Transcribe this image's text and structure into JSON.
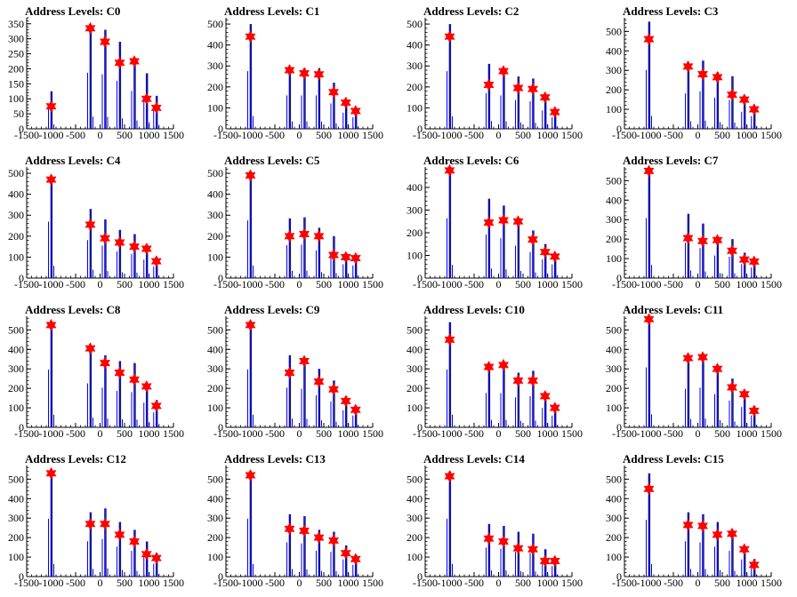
{
  "chart_data": [
    {
      "title": "Address Levels: C0",
      "type": "bar",
      "xlim": [
        -1500,
        1500
      ],
      "yticks": [
        0,
        50,
        100,
        150,
        200,
        250,
        300,
        350
      ],
      "ylim": [
        0,
        370
      ],
      "xticks": [
        -1500,
        -1000,
        -500,
        0,
        500,
        1000,
        1500
      ],
      "x": [
        -1000,
        -200,
        100,
        400,
        700,
        950,
        1150
      ],
      "peaks": [
        125,
        340,
        330,
        290,
        230,
        185,
        110
      ],
      "markers": [
        75,
        335,
        290,
        220,
        225,
        100,
        70
      ]
    },
    {
      "title": "Address Levels: C1",
      "type": "bar",
      "xlim": [
        -1500,
        1500
      ],
      "yticks": [
        0,
        100,
        200,
        300,
        400,
        500
      ],
      "ylim": [
        0,
        530
      ],
      "xticks": [
        -1500,
        -1000,
        -500,
        0,
        500,
        1000,
        1500
      ],
      "x": [
        -1000,
        -200,
        100,
        400,
        700,
        950,
        1150
      ],
      "peaks": [
        500,
        290,
        290,
        290,
        220,
        140,
        100
      ],
      "markers": [
        440,
        280,
        265,
        260,
        175,
        125,
        85
      ]
    },
    {
      "title": "Address Levels: C2",
      "type": "bar",
      "xlim": [
        -1500,
        1500
      ],
      "yticks": [
        0,
        100,
        200,
        300,
        400,
        500
      ],
      "ylim": [
        0,
        530
      ],
      "xticks": [
        -1500,
        -1000,
        -500,
        0,
        500,
        1000,
        1500
      ],
      "x": [
        -1000,
        -200,
        100,
        400,
        700,
        950,
        1150
      ],
      "peaks": [
        500,
        310,
        290,
        250,
        240,
        160,
        100
      ],
      "markers": [
        440,
        210,
        275,
        195,
        190,
        150,
        80
      ]
    },
    {
      "title": "Address Levels: C3",
      "type": "bar",
      "xlim": [
        -1500,
        1500
      ],
      "yticks": [
        0,
        100,
        200,
        300,
        400,
        500
      ],
      "ylim": [
        0,
        570
      ],
      "xticks": [
        -1500,
        -1000,
        -500,
        0,
        500,
        1000,
        1500
      ],
      "x": [
        -1000,
        -200,
        100,
        400,
        700,
        950,
        1150
      ],
      "peaks": [
        550,
        330,
        350,
        290,
        270,
        160,
        120
      ],
      "markers": [
        460,
        320,
        280,
        265,
        175,
        150,
        100
      ]
    },
    {
      "title": "Address Levels: C4",
      "type": "bar",
      "xlim": [
        -1500,
        1500
      ],
      "yticks": [
        0,
        100,
        200,
        300,
        400,
        500
      ],
      "ylim": [
        0,
        530
      ],
      "xticks": [
        -1500,
        -1000,
        -500,
        0,
        500,
        1000,
        1500
      ],
      "x": [
        -1000,
        -200,
        100,
        400,
        700,
        950,
        1150
      ],
      "peaks": [
        490,
        330,
        280,
        230,
        210,
        160,
        100
      ],
      "markers": [
        470,
        255,
        190,
        170,
        150,
        140,
        80
      ]
    },
    {
      "title": "Address Levels: C5",
      "type": "bar",
      "xlim": [
        -1500,
        1500
      ],
      "yticks": [
        0,
        100,
        200,
        300,
        400,
        500
      ],
      "ylim": [
        0,
        530
      ],
      "xticks": [
        -1500,
        -1000,
        -500,
        0,
        500,
        1000,
        1500
      ],
      "x": [
        -1000,
        -200,
        100,
        400,
        700,
        950,
        1150
      ],
      "peaks": [
        500,
        285,
        290,
        240,
        200,
        120,
        110
      ],
      "markers": [
        490,
        200,
        210,
        200,
        110,
        100,
        95
      ]
    },
    {
      "title": "Address Levels: C6",
      "type": "bar",
      "xlim": [
        -1500,
        1500
      ],
      "yticks": [
        0,
        100,
        200,
        300,
        400
      ],
      "ylim": [
        0,
        490
      ],
      "xticks": [
        -1500,
        -1000,
        -500,
        0,
        500,
        1000,
        1500
      ],
      "x": [
        -1000,
        -200,
        100,
        400,
        700,
        950,
        1150
      ],
      "peaks": [
        480,
        350,
        320,
        260,
        210,
        150,
        110
      ],
      "markers": [
        475,
        245,
        255,
        250,
        170,
        115,
        95
      ]
    },
    {
      "title": "Address Levels: C7",
      "type": "bar",
      "xlim": [
        -1500,
        1500
      ],
      "yticks": [
        0,
        100,
        200,
        300,
        400,
        500
      ],
      "ylim": [
        0,
        570
      ],
      "xticks": [
        -1500,
        -1000,
        -500,
        0,
        500,
        1000,
        1500
      ],
      "x": [
        -1000,
        -200,
        100,
        400,
        700,
        950,
        1150
      ],
      "peaks": [
        560,
        330,
        280,
        210,
        200,
        130,
        100
      ],
      "markers": [
        550,
        205,
        190,
        195,
        140,
        95,
        85
      ]
    },
    {
      "title": "Address Levels: C8",
      "type": "bar",
      "xlim": [
        -1500,
        1500
      ],
      "yticks": [
        0,
        100,
        200,
        300,
        400,
        500
      ],
      "ylim": [
        0,
        570
      ],
      "xticks": [
        -1500,
        -1000,
        -500,
        0,
        500,
        1000,
        1500
      ],
      "x": [
        -1000,
        -200,
        100,
        400,
        700,
        950,
        1150
      ],
      "peaks": [
        540,
        410,
        370,
        340,
        330,
        230,
        140
      ],
      "markers": [
        525,
        405,
        330,
        280,
        245,
        210,
        110
      ]
    },
    {
      "title": "Address Levels: C9",
      "type": "bar",
      "xlim": [
        -1500,
        1500
      ],
      "yticks": [
        0,
        100,
        200,
        300,
        400,
        500
      ],
      "ylim": [
        0,
        570
      ],
      "xticks": [
        -1500,
        -1000,
        -500,
        0,
        500,
        1000,
        1500
      ],
      "x": [
        -1000,
        -200,
        100,
        400,
        700,
        950,
        1150
      ],
      "peaks": [
        540,
        370,
        360,
        300,
        240,
        160,
        110
      ],
      "markers": [
        525,
        280,
        340,
        235,
        195,
        135,
        90
      ]
    },
    {
      "title": "Address Levels: C10",
      "type": "bar",
      "xlim": [
        -1500,
        1500
      ],
      "yticks": [
        0,
        100,
        200,
        300,
        400,
        500
      ],
      "ylim": [
        0,
        570
      ],
      "xticks": [
        -1500,
        -1000,
        -500,
        0,
        500,
        1000,
        1500
      ],
      "x": [
        -1000,
        -200,
        100,
        400,
        700,
        950,
        1150
      ],
      "peaks": [
        540,
        320,
        320,
        280,
        290,
        180,
        110
      ],
      "markers": [
        450,
        310,
        320,
        240,
        240,
        160,
        100
      ]
    },
    {
      "title": "Address Levels: C11",
      "type": "bar",
      "xlim": [
        -1500,
        1500
      ],
      "yticks": [
        0,
        100,
        200,
        300,
        400,
        500
      ],
      "ylim": [
        0,
        570
      ],
      "xticks": [
        -1500,
        -1000,
        -500,
        0,
        500,
        1000,
        1500
      ],
      "x": [
        -1000,
        -200,
        100,
        400,
        700,
        950,
        1150
      ],
      "peaks": [
        560,
        360,
        370,
        310,
        250,
        190,
        110
      ],
      "markers": [
        555,
        355,
        360,
        300,
        205,
        170,
        85
      ]
    },
    {
      "title": "Address Levels: C12",
      "type": "bar",
      "xlim": [
        -1500,
        1500
      ],
      "yticks": [
        0,
        100,
        200,
        300,
        400,
        500
      ],
      "ylim": [
        0,
        570
      ],
      "xticks": [
        -1500,
        -1000,
        -500,
        0,
        500,
        1000,
        1500
      ],
      "x": [
        -1000,
        -200,
        100,
        400,
        700,
        950,
        1150
      ],
      "peaks": [
        540,
        330,
        350,
        280,
        240,
        180,
        120
      ],
      "markers": [
        530,
        270,
        270,
        215,
        180,
        115,
        95
      ]
    },
    {
      "title": "Address Levels: C13",
      "type": "bar",
      "xlim": [
        -1500,
        1500
      ],
      "yticks": [
        0,
        100,
        200,
        300,
        400,
        500
      ],
      "ylim": [
        0,
        570
      ],
      "xticks": [
        -1500,
        -1000,
        -500,
        0,
        500,
        1000,
        1500
      ],
      "x": [
        -1000,
        -200,
        100,
        400,
        700,
        950,
        1150
      ],
      "peaks": [
        540,
        320,
        310,
        240,
        230,
        160,
        110
      ],
      "markers": [
        520,
        245,
        235,
        200,
        185,
        120,
        90
      ]
    },
    {
      "title": "Address Levels: C14",
      "type": "bar",
      "xlim": [
        -1500,
        1500
      ],
      "yticks": [
        0,
        100,
        200,
        300,
        400,
        500
      ],
      "ylim": [
        0,
        570
      ],
      "xticks": [
        -1500,
        -1000,
        -500,
        0,
        500,
        1000,
        1500
      ],
      "x": [
        -1000,
        -200,
        100,
        400,
        700,
        950,
        1150
      ],
      "peaks": [
        540,
        270,
        260,
        230,
        220,
        140,
        100
      ],
      "markers": [
        515,
        195,
        180,
        145,
        140,
        80,
        80
      ]
    },
    {
      "title": "Address Levels: C15",
      "type": "bar",
      "xlim": [
        -1500,
        1500
      ],
      "yticks": [
        0,
        100,
        200,
        300,
        400,
        500
      ],
      "ylim": [
        0,
        570
      ],
      "xticks": [
        -1500,
        -1000,
        -500,
        0,
        500,
        1000,
        1500
      ],
      "x": [
        -1000,
        -200,
        100,
        400,
        700,
        950,
        1150
      ],
      "peaks": [
        530,
        330,
        320,
        280,
        240,
        160,
        90
      ],
      "markers": [
        450,
        265,
        260,
        215,
        220,
        140,
        60
      ]
    }
  ],
  "colors": {
    "line": "#0000ff",
    "tip": "#000000",
    "marker": "#ff0000",
    "axis": "#000000"
  }
}
